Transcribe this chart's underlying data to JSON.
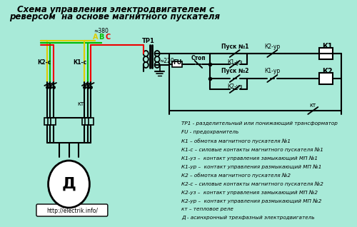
{
  "bg_color": "#a8ead8",
  "title_line1": "Схема управления электродвигателем с",
  "title_line2": "реверсом  на основе магнитного пускателя",
  "title_color": "#000000",
  "title_fontsize": 8.5,
  "url_text": "http://electrik.info/",
  "legend_lines": [
    "ТР1 - разделительный или понижающий трансформатор",
    "FU - предохранитель",
    "К1 – обмотка магнитного пускателя №1",
    "К1-с – силовые контакты магнитного пускателя №1",
    "К1-уз –  контакт управления замыкающий МП №1",
    "К1-ур –  контакт управления размыкающий МП №1",
    "К2 – обмотка магнитного пускателя №2",
    "К2-с – силовые контакты магнитного пускателя №2",
    "К2-уз –  контакт управления замыкающий МП №2",
    "К2-ур –  контакт управления размыкающий МП №2",
    "кт – тепловое реле",
    "Д - асинхронный трехфазный электродвигатель"
  ],
  "legend_fontsize": 5.2,
  "phase_A_color": "#ddcc00",
  "phase_B_color": "#00bb00",
  "phase_C_color": "#ee0000",
  "wire_color": "#000000",
  "label_color": "#000000"
}
